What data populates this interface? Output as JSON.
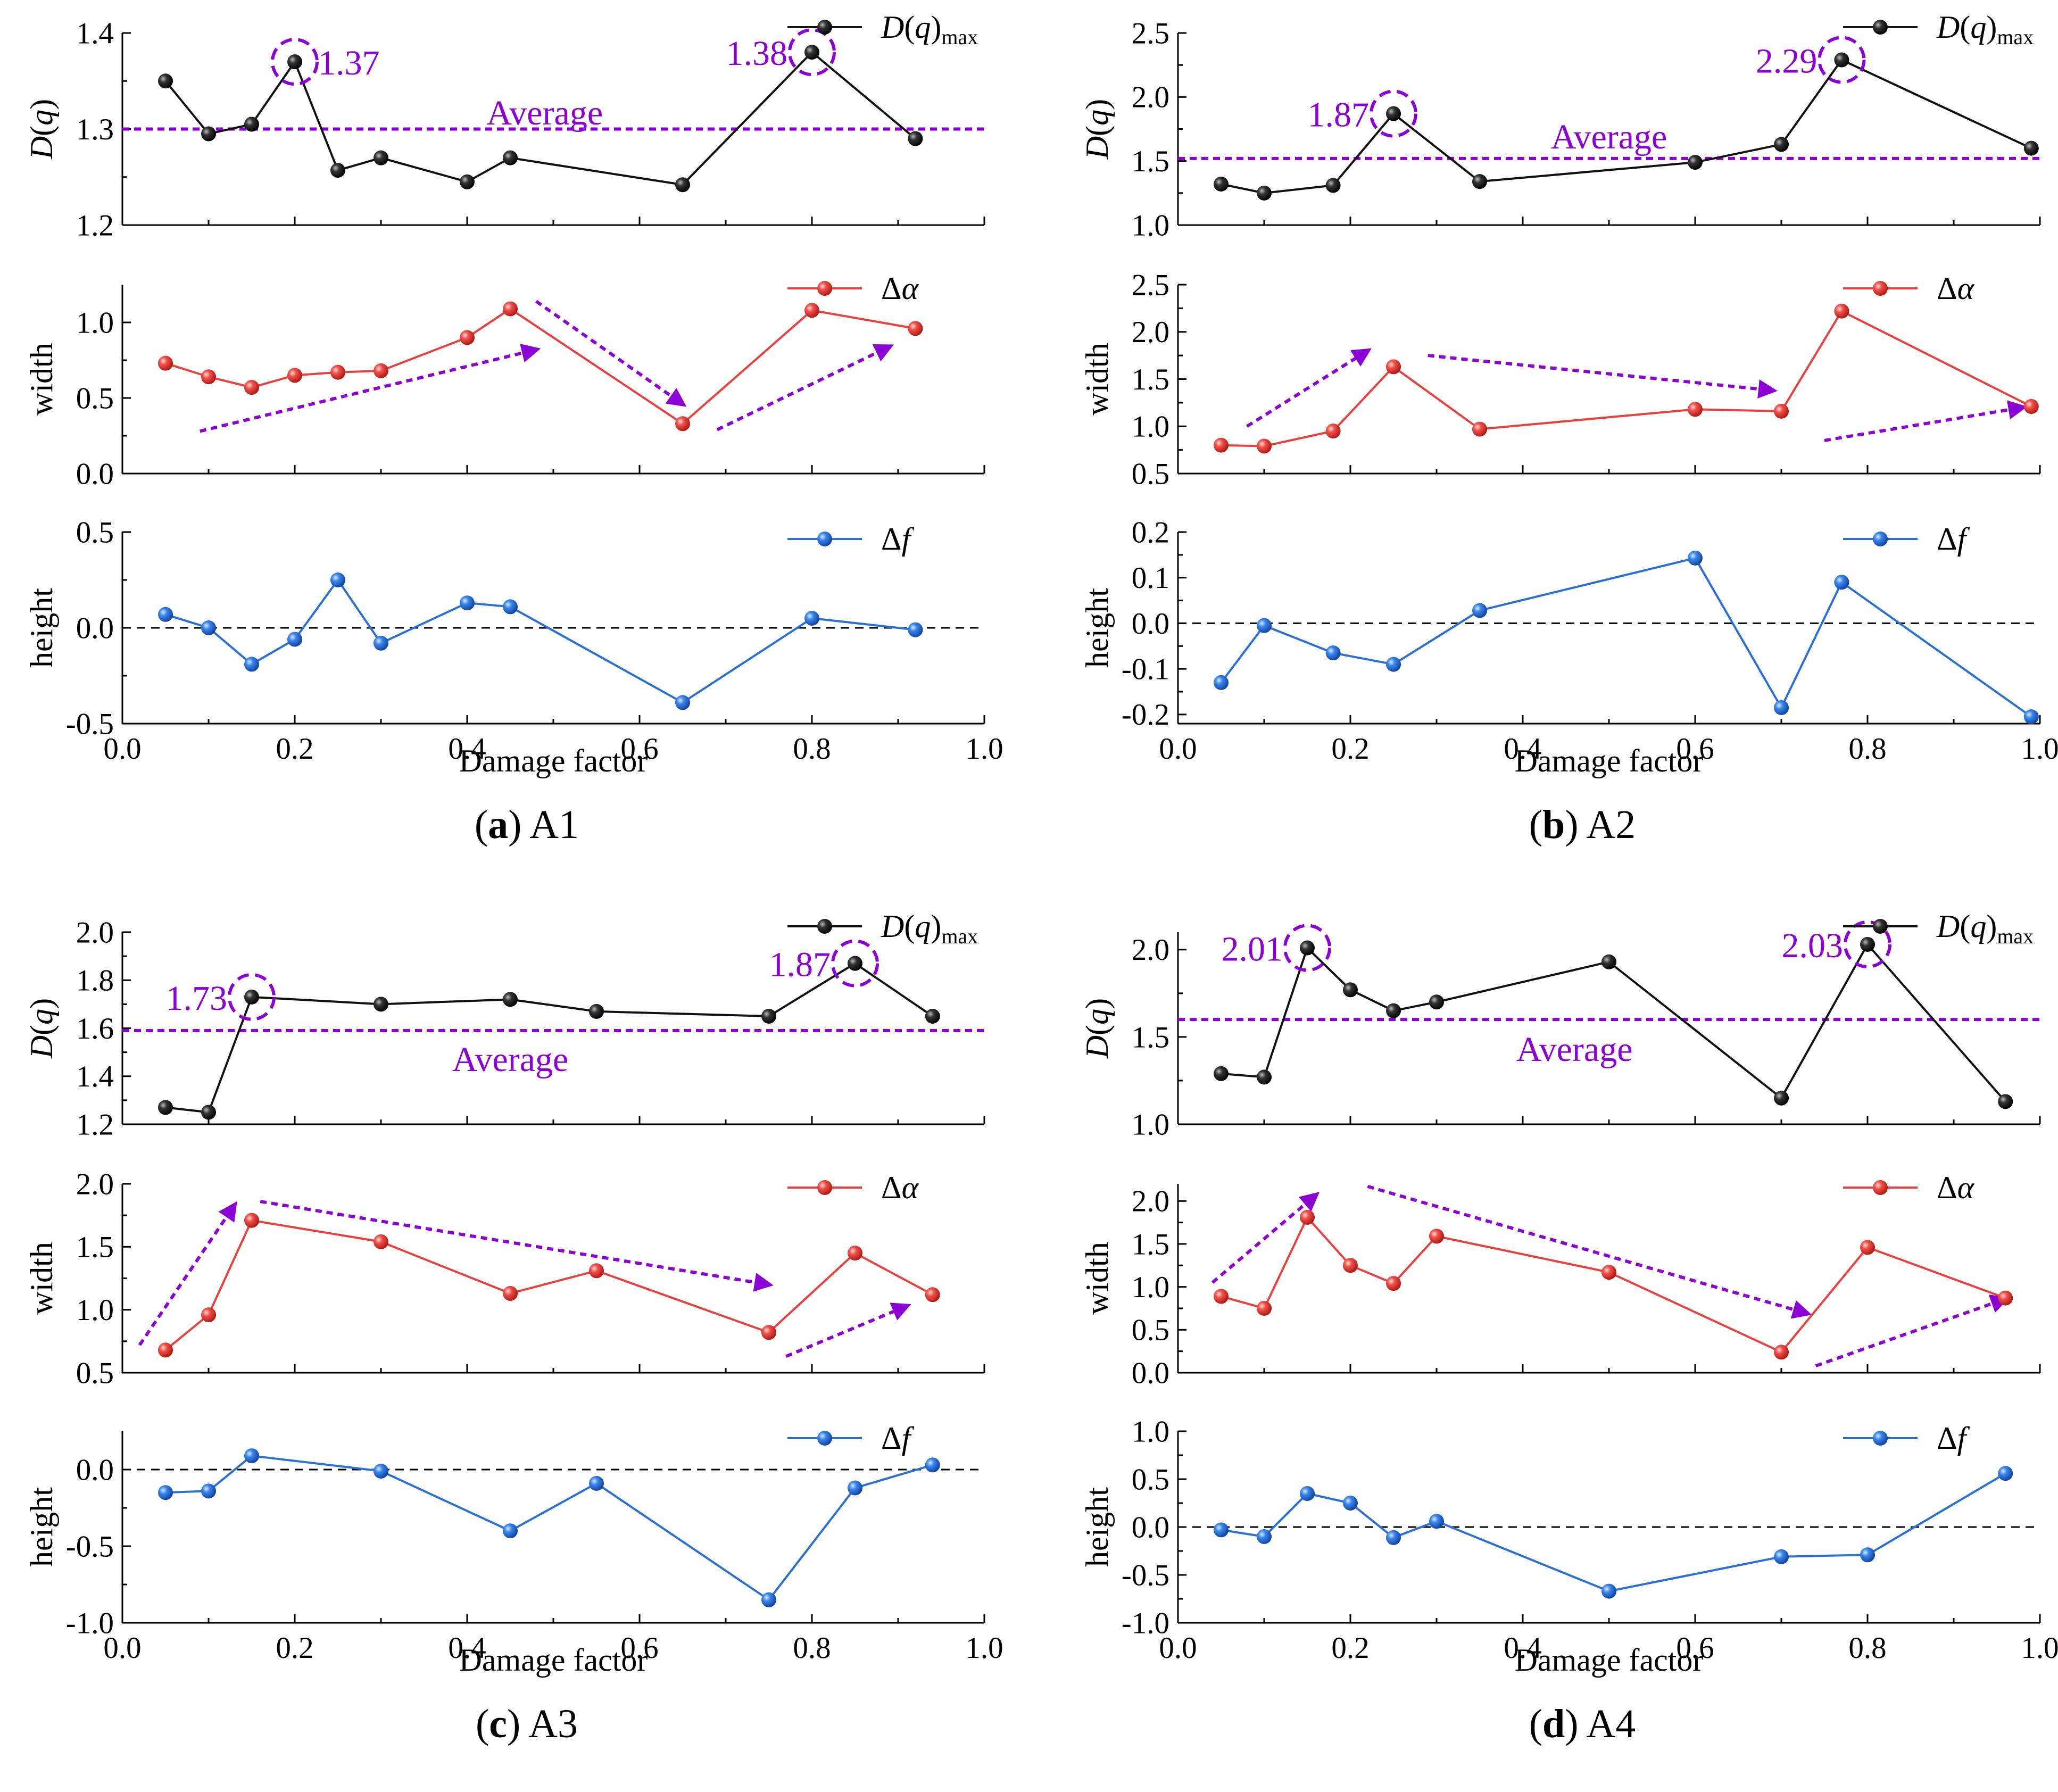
{
  "colors": {
    "dq": "#111111",
    "width": "#e8413d",
    "height": "#2a6fd6",
    "accent": "#8b00d4",
    "axis": "#000000"
  },
  "common": {
    "xlabel": "Damage factor",
    "xlim": [
      0,
      1.0
    ],
    "xticks": [
      "0.0",
      "0.2",
      "0.4",
      "0.6",
      "0.8",
      "1.0"
    ],
    "average_label": "Average",
    "dq_ylabel": "D(q)",
    "width_ylabel": "width",
    "height_ylabel": "height",
    "legend_dq": "D(q)max",
    "legend_width": "Δα",
    "legend_height": "Δf"
  },
  "chart_data": [
    {
      "type": "line",
      "id": "a",
      "letter": "a",
      "caption": "A1",
      "dq": {
        "ylim": [
          1.2,
          1.4
        ],
        "ticks": [
          1.2,
          1.3,
          1.4
        ],
        "tick_labels": [
          "1.2",
          "1.3",
          "1.4"
        ],
        "x": [
          0.05,
          0.1,
          0.15,
          0.2,
          0.25,
          0.3,
          0.4,
          0.45,
          0.65,
          0.8,
          0.92
        ],
        "y": [
          1.35,
          1.295,
          1.305,
          1.37,
          1.257,
          1.27,
          1.245,
          1.27,
          1.242,
          1.38,
          1.29
        ],
        "average": 1.3,
        "average_label_at": [
          0.49,
          1.317
        ],
        "peaks": [
          {
            "x": 0.2,
            "y": 1.37,
            "label": "1.37",
            "side": "right"
          },
          {
            "x": 0.8,
            "y": 1.38,
            "label": "1.38",
            "side": "left"
          }
        ]
      },
      "width": {
        "ylim": [
          0,
          1.25
        ],
        "ticks": [
          0.0,
          0.5,
          1.0
        ],
        "tick_labels": [
          "0.0",
          "0.5",
          "1.0"
        ],
        "x": [
          0.05,
          0.1,
          0.15,
          0.2,
          0.25,
          0.3,
          0.4,
          0.45,
          0.65,
          0.8,
          0.92
        ],
        "y": [
          0.73,
          0.64,
          0.57,
          0.65,
          0.67,
          0.68,
          0.9,
          1.09,
          0.33,
          1.08,
          0.96
        ],
        "arrows": [
          {
            "from": [
              0.09,
              0.28
            ],
            "to": [
              0.48,
              0.82
            ]
          },
          {
            "from": [
              0.48,
              1.14
            ],
            "to": [
              0.65,
              0.46
            ]
          },
          {
            "from": [
              0.69,
              0.29
            ],
            "to": [
              0.89,
              0.84
            ]
          }
        ]
      },
      "height": {
        "ylim": [
          -0.5,
          0.5
        ],
        "ticks": [
          -0.5,
          0.0,
          0.5
        ],
        "tick_labels": [
          "-0.5",
          "0.0",
          "0.5"
        ],
        "x": [
          0.05,
          0.1,
          0.15,
          0.2,
          0.25,
          0.3,
          0.4,
          0.45,
          0.65,
          0.8,
          0.92
        ],
        "y": [
          0.07,
          0.0,
          -0.19,
          -0.06,
          0.25,
          -0.08,
          0.13,
          0.11,
          -0.39,
          0.05,
          -0.01
        ]
      }
    },
    {
      "type": "line",
      "id": "b",
      "letter": "b",
      "caption": "A2",
      "dq": {
        "ylim": [
          1.0,
          2.5
        ],
        "ticks": [
          1.0,
          1.5,
          2.0,
          2.5
        ],
        "tick_labels": [
          "1.0",
          "1.5",
          "2.0",
          "2.5"
        ],
        "x": [
          0.05,
          0.1,
          0.18,
          0.25,
          0.35,
          0.6,
          0.7,
          0.77,
          0.99
        ],
        "y": [
          1.32,
          1.25,
          1.31,
          1.87,
          1.34,
          1.49,
          1.63,
          2.29,
          1.6
        ],
        "average": 1.52,
        "average_label_at": [
          0.5,
          1.69
        ],
        "peaks": [
          {
            "x": 0.25,
            "y": 1.87,
            "label": "1.87",
            "side": "left"
          },
          {
            "x": 0.77,
            "y": 2.29,
            "label": "2.29",
            "side": "left"
          }
        ]
      },
      "width": {
        "ylim": [
          0.5,
          2.5
        ],
        "ticks": [
          0.5,
          1.0,
          1.5,
          2.0,
          2.5
        ],
        "tick_labels": [
          "0.5",
          "1.0",
          "1.5",
          "2.0",
          "2.5"
        ],
        "x": [
          0.05,
          0.1,
          0.18,
          0.25,
          0.35,
          0.6,
          0.7,
          0.77,
          0.99
        ],
        "y": [
          0.8,
          0.79,
          0.95,
          1.63,
          0.97,
          1.18,
          1.16,
          2.22,
          1.21
        ],
        "arrows": [
          {
            "from": [
              0.08,
              1.0
            ],
            "to": [
              0.22,
              1.8
            ]
          },
          {
            "from": [
              0.29,
              1.75
            ],
            "to": [
              0.69,
              1.38
            ]
          },
          {
            "from": [
              0.75,
              0.85
            ],
            "to": [
              0.98,
              1.2
            ]
          }
        ]
      },
      "height": {
        "ylim": [
          -0.22,
          0.2
        ],
        "ticks": [
          -0.2,
          -0.1,
          0.0,
          0.1,
          0.2
        ],
        "tick_labels": [
          "-0.2",
          "-0.1",
          "0.0",
          "0.1",
          "0.2"
        ],
        "x": [
          0.05,
          0.1,
          0.18,
          0.25,
          0.35,
          0.6,
          0.7,
          0.77,
          0.99
        ],
        "y": [
          -0.13,
          -0.005,
          -0.065,
          -0.09,
          0.028,
          0.143,
          -0.185,
          0.09,
          -0.205
        ]
      }
    },
    {
      "type": "line",
      "id": "c",
      "letter": "c",
      "caption": "A3",
      "dq": {
        "ylim": [
          1.2,
          2.0
        ],
        "ticks": [
          1.2,
          1.4,
          1.6,
          1.8,
          2.0
        ],
        "tick_labels": [
          "1.2",
          "1.4",
          "1.6",
          "1.8",
          "2.0"
        ],
        "x": [
          0.05,
          0.1,
          0.15,
          0.3,
          0.45,
          0.55,
          0.75,
          0.85,
          0.94
        ],
        "y": [
          1.27,
          1.25,
          1.73,
          1.7,
          1.72,
          1.67,
          1.65,
          1.87,
          1.65
        ],
        "average": 1.59,
        "average_label_at": [
          0.45,
          1.47
        ],
        "peaks": [
          {
            "x": 0.15,
            "y": 1.73,
            "label": "1.73",
            "side": "left"
          },
          {
            "x": 0.85,
            "y": 1.87,
            "label": "1.87",
            "side": "left"
          }
        ]
      },
      "width": {
        "ylim": [
          0.5,
          2.0
        ],
        "ticks": [
          0.5,
          1.0,
          1.5,
          2.0
        ],
        "tick_labels": [
          "0.5",
          "1.0",
          "1.5",
          "2.0"
        ],
        "x": [
          0.05,
          0.1,
          0.15,
          0.3,
          0.45,
          0.55,
          0.75,
          0.85,
          0.94
        ],
        "y": [
          0.68,
          0.96,
          1.71,
          1.54,
          1.13,
          1.31,
          0.82,
          1.45,
          1.12
        ],
        "arrows": [
          {
            "from": [
              0.02,
              0.72
            ],
            "to": [
              0.13,
              1.83
            ]
          },
          {
            "from": [
              0.16,
              1.86
            ],
            "to": [
              0.75,
              1.2
            ]
          },
          {
            "from": [
              0.77,
              0.63
            ],
            "to": [
              0.91,
              1.03
            ]
          }
        ]
      },
      "height": {
        "ylim": [
          -1.0,
          0.25
        ],
        "ticks": [
          -1.0,
          -0.5,
          0.0
        ],
        "tick_labels": [
          "-1.0",
          "-0.5",
          "0.0"
        ],
        "x": [
          0.05,
          0.1,
          0.15,
          0.3,
          0.45,
          0.55,
          0.75,
          0.85,
          0.94
        ],
        "y": [
          -0.15,
          -0.14,
          0.09,
          -0.01,
          -0.4,
          -0.09,
          -0.85,
          -0.12,
          0.03
        ]
      }
    },
    {
      "type": "line",
      "id": "d",
      "letter": "d",
      "caption": "A4",
      "dq": {
        "ylim": [
          1.0,
          2.1
        ],
        "ticks": [
          1.0,
          1.5,
          2.0
        ],
        "tick_labels": [
          "1.0",
          "1.5",
          "2.0"
        ],
        "x": [
          0.05,
          0.1,
          0.15,
          0.2,
          0.25,
          0.3,
          0.5,
          0.7,
          0.8,
          0.96
        ],
        "y": [
          1.29,
          1.27,
          2.01,
          1.77,
          1.65,
          1.7,
          1.93,
          1.15,
          2.03,
          1.13
        ],
        "average": 1.6,
        "average_label_at": [
          0.46,
          1.43
        ],
        "peaks": [
          {
            "x": 0.15,
            "y": 2.01,
            "label": "2.01",
            "side": "left"
          },
          {
            "x": 0.8,
            "y": 2.03,
            "label": "2.03",
            "side": "left"
          }
        ]
      },
      "width": {
        "ylim": [
          0.0,
          2.2
        ],
        "ticks": [
          0.0,
          0.5,
          1.0,
          1.5,
          2.0
        ],
        "tick_labels": [
          "0.0",
          "0.5",
          "1.0",
          "1.5",
          "2.0"
        ],
        "x": [
          0.05,
          0.1,
          0.15,
          0.2,
          0.25,
          0.3,
          0.5,
          0.7,
          0.8,
          0.96
        ],
        "y": [
          0.89,
          0.75,
          1.81,
          1.25,
          1.04,
          1.59,
          1.17,
          0.24,
          1.46,
          0.87
        ],
        "arrows": [
          {
            "from": [
              0.04,
              1.05
            ],
            "to": [
              0.16,
              2.07
            ]
          },
          {
            "from": [
              0.22,
              2.17
            ],
            "to": [
              0.73,
              0.69
            ]
          },
          {
            "from": [
              0.74,
              0.08
            ],
            "to": [
              0.96,
              0.86
            ]
          }
        ]
      },
      "height": {
        "ylim": [
          -1.0,
          1.0
        ],
        "ticks": [
          -1.0,
          -0.5,
          0.0,
          0.5,
          1.0
        ],
        "tick_labels": [
          "-1.0",
          "-0.5",
          "0.0",
          "0.5",
          "1.0"
        ],
        "x": [
          0.05,
          0.1,
          0.15,
          0.2,
          0.25,
          0.3,
          0.5,
          0.7,
          0.8,
          0.96
        ],
        "y": [
          -0.03,
          -0.1,
          0.35,
          0.25,
          -0.11,
          0.06,
          -0.67,
          -0.31,
          -0.29,
          0.56
        ]
      }
    }
  ]
}
